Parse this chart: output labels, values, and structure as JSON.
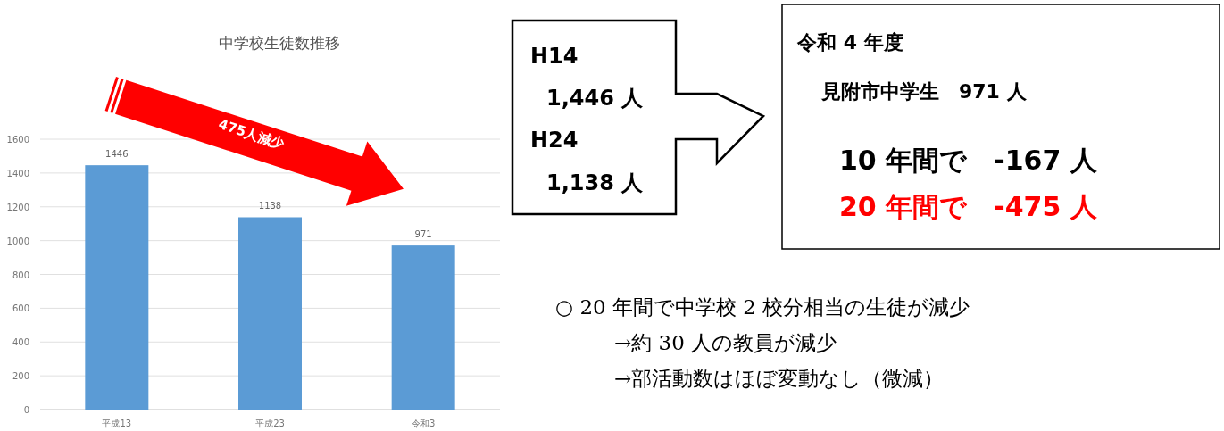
{
  "chart_data": {
    "type": "bar",
    "title": "中学校生徒数推移",
    "categories": [
      "平成13",
      "平成23",
      "令和3"
    ],
    "values": [
      1446,
      1138,
      971
    ],
    "color": "#5b9bd5",
    "ylim": [
      0,
      1600
    ],
    "yticks": [
      0,
      200,
      400,
      600,
      800,
      1000,
      1200,
      1400,
      1600
    ],
    "grid": "y",
    "data_labels": true,
    "annotations": [
      "475人減少",
      "H14",
      "1,446 人",
      "H24",
      "1,138 人",
      "令和 4 年度",
      "見附市中学生　971 人",
      "10 年間で　-167 人",
      "20 年間で　-475 人",
      "○ 20 年間で中学校 2 校分相当の生徒が減少",
      "→約 30 人の教員が減少",
      "→部活動数はほぼ変動なし（微減）"
    ]
  }
}
